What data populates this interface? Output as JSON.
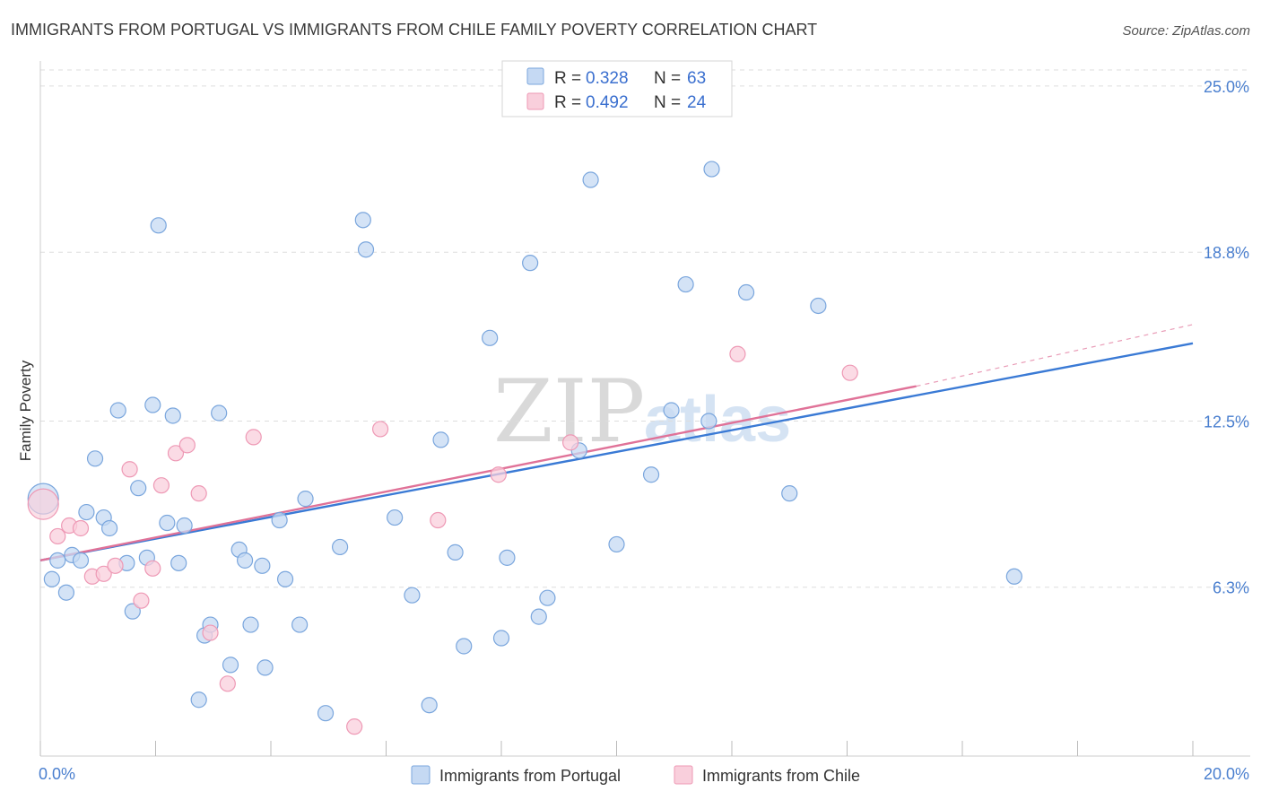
{
  "title": "IMMIGRANTS FROM PORTUGAL VS IMMIGRANTS FROM CHILE FAMILY POVERTY CORRELATION CHART",
  "source": "Source: ZipAtlas.com",
  "watermark": {
    "zip": "ZIP",
    "atlas": "atlas"
  },
  "legend": {
    "r_label": "R =",
    "n_label": "N =",
    "rows": [
      {
        "r": "0.328",
        "n": "63"
      },
      {
        "r": "0.492",
        "n": "24"
      }
    ]
  },
  "colors": {
    "portugal_fill": "#c5d9f3",
    "portugal_stroke": "#7aa6dd",
    "portugal_line": "#3a7ad5",
    "chile_fill": "#f9cfdc",
    "chile_stroke": "#ee99b5",
    "chile_line": "#e07298",
    "grid": "#dddddd",
    "tick_text": "#4a7fcf"
  },
  "chart_data": {
    "type": "scatter",
    "title": "IMMIGRANTS FROM PORTUGAL VS IMMIGRANTS FROM CHILE FAMILY POVERTY CORRELATION CHART",
    "xlabel": "",
    "ylabel": "Family Poverty",
    "xlim": [
      0,
      20
    ],
    "ylim": [
      0,
      25.6
    ],
    "x_tick_labels": [
      "0.0%",
      "20.0%"
    ],
    "y_ticks": [
      6.3,
      12.5,
      18.8,
      25.0
    ],
    "y_tick_labels": [
      "6.3%",
      "12.5%",
      "18.8%",
      "25.0%"
    ],
    "grid": true,
    "legend_placement": "bottom",
    "series": [
      {
        "name": "Immigrants from Portugal",
        "r": 0.328,
        "n": 63,
        "trend": {
          "x": [
            0,
            20
          ],
          "y": [
            7.3,
            15.4
          ]
        },
        "points": [
          [
            0.05,
            9.6,
            2.0
          ],
          [
            0.2,
            6.6,
            1
          ],
          [
            0.3,
            7.3,
            1
          ],
          [
            0.45,
            6.1,
            1
          ],
          [
            0.55,
            7.5,
            1
          ],
          [
            0.7,
            7.3,
            1
          ],
          [
            0.8,
            9.1,
            1
          ],
          [
            0.95,
            11.1,
            1
          ],
          [
            1.1,
            8.9,
            1
          ],
          [
            1.2,
            8.5,
            1
          ],
          [
            1.35,
            12.9,
            1
          ],
          [
            1.5,
            7.2,
            1
          ],
          [
            1.6,
            5.4,
            1
          ],
          [
            1.7,
            10.0,
            1
          ],
          [
            1.85,
            7.4,
            1
          ],
          [
            1.95,
            13.1,
            1
          ],
          [
            2.05,
            19.8,
            1
          ],
          [
            2.2,
            8.7,
            1
          ],
          [
            2.3,
            12.7,
            1
          ],
          [
            2.4,
            7.2,
            1
          ],
          [
            2.5,
            8.6,
            1
          ],
          [
            2.75,
            2.1,
            1
          ],
          [
            2.85,
            4.5,
            1
          ],
          [
            2.95,
            4.9,
            1
          ],
          [
            3.1,
            12.8,
            1
          ],
          [
            3.3,
            3.4,
            1
          ],
          [
            3.45,
            7.7,
            1
          ],
          [
            3.55,
            7.3,
            1
          ],
          [
            3.65,
            4.9,
            1
          ],
          [
            3.85,
            7.1,
            1
          ],
          [
            3.9,
            3.3,
            1
          ],
          [
            4.15,
            8.8,
            1
          ],
          [
            4.25,
            6.6,
            1
          ],
          [
            4.5,
            4.9,
            1
          ],
          [
            4.6,
            9.6,
            1
          ],
          [
            4.95,
            1.6,
            1
          ],
          [
            5.2,
            7.8,
            1
          ],
          [
            5.6,
            20.0,
            1
          ],
          [
            5.65,
            18.9,
            1
          ],
          [
            6.15,
            8.9,
            1
          ],
          [
            6.45,
            6.0,
            1
          ],
          [
            6.75,
            1.9,
            1
          ],
          [
            6.95,
            11.8,
            1
          ],
          [
            7.2,
            7.6,
            1
          ],
          [
            7.35,
            4.1,
            1
          ],
          [
            7.8,
            15.6,
            1
          ],
          [
            8.0,
            4.4,
            1
          ],
          [
            8.1,
            7.4,
            1
          ],
          [
            8.5,
            18.4,
            1
          ],
          [
            8.65,
            5.2,
            1
          ],
          [
            8.8,
            5.9,
            1
          ],
          [
            9.35,
            11.4,
            1
          ],
          [
            9.55,
            21.5,
            1
          ],
          [
            10.0,
            7.9,
            1
          ],
          [
            10.6,
            10.5,
            1
          ],
          [
            10.95,
            12.9,
            1
          ],
          [
            11.2,
            17.6,
            1
          ],
          [
            11.6,
            12.5,
            1
          ],
          [
            11.65,
            21.9,
            1
          ],
          [
            12.25,
            17.3,
            1
          ],
          [
            13.0,
            9.8,
            1
          ],
          [
            13.5,
            16.8,
            1
          ],
          [
            16.9,
            6.7,
            1
          ]
        ]
      },
      {
        "name": "Immigrants from Chile",
        "r": 0.492,
        "n": 24,
        "trend": {
          "x": [
            0,
            15.2
          ],
          "y": [
            7.3,
            13.8
          ]
        },
        "trend_extension": {
          "x": [
            15.2,
            20
          ],
          "y": [
            13.8,
            16.1
          ]
        },
        "points": [
          [
            0.05,
            9.4,
            2.0
          ],
          [
            0.3,
            8.2,
            1
          ],
          [
            0.5,
            8.6,
            1
          ],
          [
            0.7,
            8.5,
            1
          ],
          [
            0.9,
            6.7,
            1
          ],
          [
            1.1,
            6.8,
            1
          ],
          [
            1.3,
            7.1,
            1
          ],
          [
            1.55,
            10.7,
            1
          ],
          [
            1.75,
            5.8,
            1
          ],
          [
            1.95,
            7.0,
            1
          ],
          [
            2.1,
            10.1,
            1
          ],
          [
            2.35,
            11.3,
            1
          ],
          [
            2.55,
            11.6,
            1
          ],
          [
            2.75,
            9.8,
            1
          ],
          [
            2.95,
            4.6,
            1
          ],
          [
            3.25,
            2.7,
            1
          ],
          [
            3.7,
            11.9,
            1
          ],
          [
            5.45,
            1.1,
            1
          ],
          [
            5.9,
            12.2,
            1
          ],
          [
            6.9,
            8.8,
            1
          ],
          [
            7.95,
            10.5,
            1
          ],
          [
            9.2,
            11.7,
            1
          ],
          [
            12.1,
            15.0,
            1
          ],
          [
            14.05,
            14.3,
            1
          ]
        ]
      }
    ]
  }
}
